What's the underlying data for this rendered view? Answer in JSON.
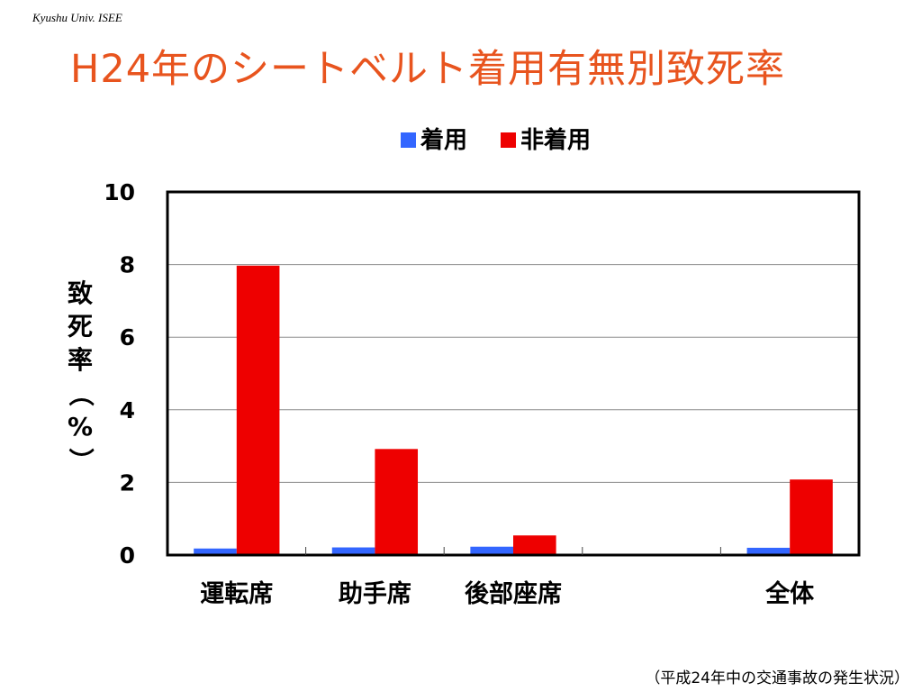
{
  "header": {
    "note": "Kyushu Univ. ISEE",
    "title": "H24年のシートベルト着用有無別致死率"
  },
  "footnote": "（平成24年中の交通事故の発生状況）",
  "colors": {
    "title": "#e8541e",
    "worn": "#3366ff",
    "unworn": "#ee0000"
  },
  "chart_data": {
    "type": "bar",
    "title": "",
    "xlabel": "",
    "ylabel": "致死率（%）",
    "ylim": [
      0,
      10
    ],
    "yticks": [
      0,
      2,
      4,
      6,
      8,
      10
    ],
    "grid": true,
    "legend_position": "top",
    "categories": [
      "運転席",
      "助手席",
      "後部座席",
      "",
      "全体"
    ],
    "series": [
      {
        "name": "着用",
        "color": "#3366ff",
        "values": [
          0.18,
          0.21,
          0.23,
          null,
          0.2
        ]
      },
      {
        "name": "非着用",
        "color": "#ee0000",
        "values": [
          7.97,
          2.92,
          0.54,
          null,
          2.08
        ]
      }
    ]
  }
}
